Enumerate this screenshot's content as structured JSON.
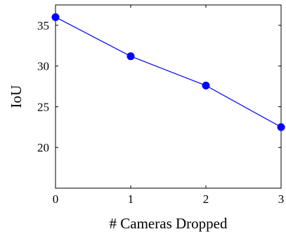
{
  "chart_data": {
    "type": "line",
    "x": [
      0,
      1,
      2,
      3
    ],
    "series": [
      {
        "values": [
          36.0,
          31.2,
          27.6,
          22.5
        ],
        "color": "#0000ff"
      }
    ],
    "title": "",
    "xlabel": "# Cameras Dropped",
    "ylabel": "IoU",
    "xlim": [
      0,
      3
    ],
    "ylim": [
      15,
      37.5
    ],
    "xticks": [
      0,
      1,
      2,
      3
    ],
    "yticks": [
      20,
      25,
      30,
      35
    ],
    "grid": false,
    "axis_color": "#000000"
  }
}
